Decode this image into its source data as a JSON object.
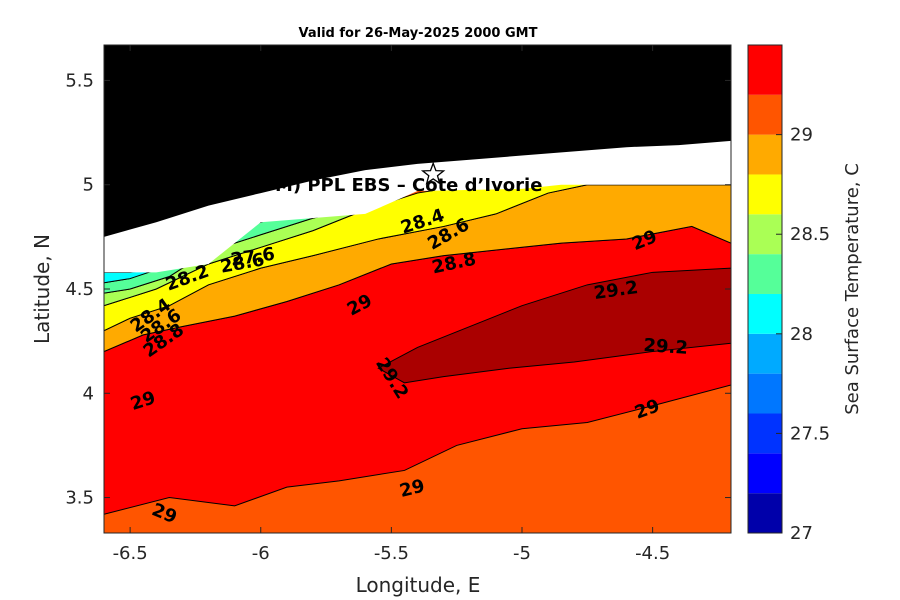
{
  "chart_data": {
    "type": "heatmap",
    "title": "Valid for 26-May-2025 2000 GMT",
    "xlabel": "Longitude, E",
    "ylabel": "Latitude, N",
    "xlim": [
      -6.6,
      -4.2
    ],
    "ylim": [
      3.33,
      5.67
    ],
    "xticks": [
      -6.5,
      -6,
      -5.5,
      -5,
      -4.5
    ],
    "xtick_labels": [
      "-6.5",
      "-6",
      "-5.5",
      "-5",
      "-4.5"
    ],
    "yticks": [
      3.5,
      4,
      4.5,
      5,
      5.5
    ],
    "ytick_labels": [
      "3.5",
      "4",
      "4.5",
      "5",
      "5.5"
    ],
    "colorbar": {
      "label": "Sea Surface Temperature, C",
      "range": [
        27,
        29.45
      ],
      "tick_values": [
        27,
        27.5,
        28,
        28.5,
        29
      ],
      "tick_labels": [
        "27",
        "27.5",
        "28",
        "28.5",
        "29"
      ],
      "levels": [
        27,
        27.2,
        27.4,
        27.6,
        27.8,
        28,
        28.2,
        28.4,
        28.6,
        28.8,
        29,
        29.2,
        29.45
      ],
      "colors": [
        "#0000aa",
        "#0000ff",
        "#0033ff",
        "#0077ff",
        "#00aaff",
        "#00ffff",
        "#55ff99",
        "#aaff55",
        "#ffff00",
        "#ffaa00",
        "#ff5500",
        "#ff0000",
        "#aa0000"
      ]
    },
    "fields": [
      {
        "level": 29.0,
        "color": "#ff5500"
      },
      {
        "level": 29.0,
        "color": "#ff0000"
      },
      {
        "level": 29.2,
        "color": "#aa0000"
      },
      {
        "level": 28.8,
        "color": "#ffaa00"
      },
      {
        "level": 28.6,
        "color": "#ffff00"
      },
      {
        "level": 28.4,
        "color": "#aaff55"
      },
      {
        "level": 28.2,
        "color": "#55ff99"
      },
      {
        "level": 28.0,
        "color": "#00ffff"
      }
    ],
    "land_color": "#000000",
    "nodata_color": "#ffffff",
    "contour_labels": [
      {
        "text": "29",
        "x": -6.45,
        "y": 3.96,
        "angle": -18
      },
      {
        "text": "29",
        "x": -6.37,
        "y": 3.42,
        "angle": 22
      },
      {
        "text": "29",
        "x": -5.42,
        "y": 3.54,
        "angle": -14
      },
      {
        "text": "29",
        "x": -5.62,
        "y": 4.42,
        "angle": -28
      },
      {
        "text": "29",
        "x": -4.53,
        "y": 4.73,
        "angle": -22
      },
      {
        "text": "29",
        "x": -4.52,
        "y": 3.92,
        "angle": -20
      },
      {
        "text": "29.2",
        "x": -5.5,
        "y": 4.07,
        "angle": 58
      },
      {
        "text": "29.2",
        "x": -4.64,
        "y": 4.49,
        "angle": -8
      },
      {
        "text": "29.2",
        "x": -4.45,
        "y": 4.22,
        "angle": 4
      },
      {
        "text": "28.8",
        "x": -6.37,
        "y": 4.25,
        "angle": -35
      },
      {
        "text": "28.6",
        "x": -6.38,
        "y": 4.32,
        "angle": -35
      },
      {
        "text": "28.4",
        "x": -6.42,
        "y": 4.37,
        "angle": -35
      },
      {
        "text": "28.2",
        "x": -6.28,
        "y": 4.55,
        "angle": -20
      },
      {
        "text": "28.8",
        "x": -5.26,
        "y": 4.62,
        "angle": -12
      },
      {
        "text": "28.6",
        "x": -5.28,
        "y": 4.76,
        "angle": -30
      },
      {
        "text": "28.4",
        "x": -5.38,
        "y": 4.82,
        "angle": -18
      },
      {
        "text": "27.6",
        "x": -6.03,
        "y": 4.65,
        "angle": -8
      },
      {
        "text": "28.6",
        "x": -6.07,
        "y": 4.62,
        "angle": -10
      }
    ],
    "marker": {
      "label": "PPL EBS",
      "x": -5.34,
      "y": 5.05,
      "shape": "star"
    },
    "annotation": {
      "text": "A (ONHYM) PPL EBS  – Cote d’Ivorie",
      "x": -5.6,
      "y": 4.97
    }
  }
}
